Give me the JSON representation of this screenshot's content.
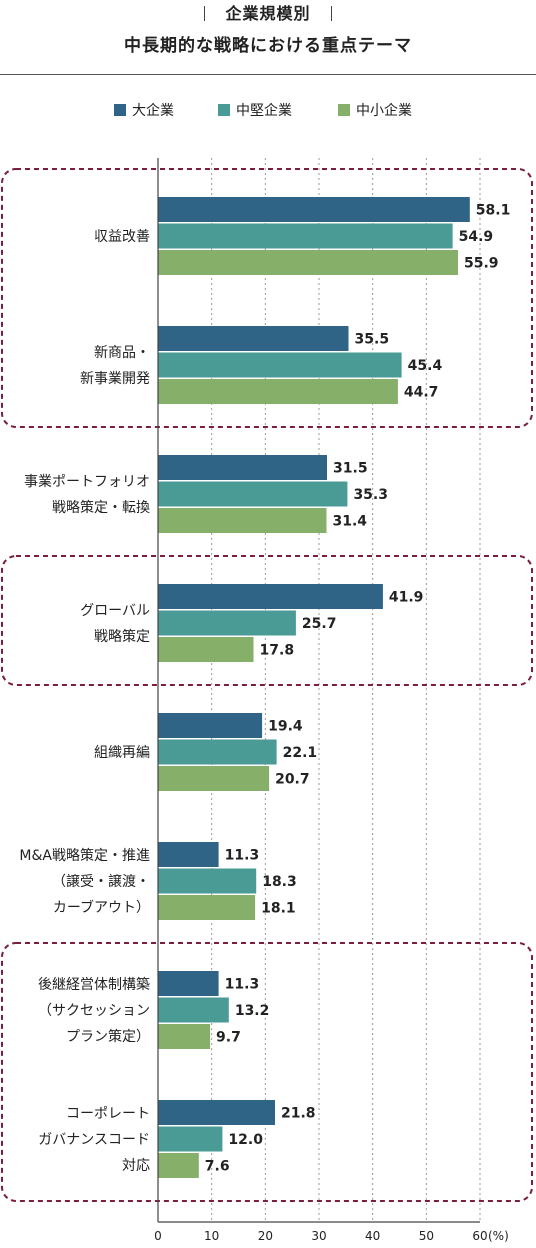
{
  "title_line1": "企業規模別",
  "title_line2": "中長期的な戦略における重点テーマ",
  "colors": {
    "large": "#2f6487",
    "medium": "#4a9a96",
    "small": "#86b06a",
    "highlight": "#7a1e3c"
  },
  "chart_data": {
    "type": "bar",
    "orientation": "horizontal",
    "x_unit": "(%)",
    "xlim": [
      0,
      60
    ],
    "x_ticks": [
      0,
      10,
      20,
      30,
      40,
      50,
      60
    ],
    "x_tick_labels": [
      "0",
      "10",
      "20",
      "30",
      "40",
      "50",
      "60"
    ],
    "grid": "vertical dotted",
    "legend_position": "top",
    "categories": [
      [
        "収益改善"
      ],
      [
        "新商品・",
        "新事業開発"
      ],
      [
        "事業ポートフォリオ",
        "戦略策定・転換"
      ],
      [
        "グローバル",
        "戦略策定"
      ],
      [
        "組織再編"
      ],
      [
        "M&A戦略策定・推進",
        "（譲受・譲渡・",
        "カーブアウト）"
      ],
      [
        "後継経営体制構築",
        "（サクセッション",
        "プラン策定）"
      ],
      [
        "コーポレート",
        "ガバナンスコード",
        "対応"
      ]
    ],
    "series": [
      {
        "name": "大企業",
        "values": [
          58.1,
          35.5,
          31.5,
          41.9,
          19.4,
          11.3,
          11.3,
          21.8
        ],
        "labels": [
          "58.1",
          "35.5",
          "31.5",
          "41.9",
          "19.4",
          "11.3",
          "11.3",
          "21.8"
        ]
      },
      {
        "name": "中堅企業",
        "values": [
          54.9,
          45.4,
          35.3,
          25.7,
          22.1,
          18.3,
          13.2,
          12.0
        ],
        "labels": [
          "54.9",
          "45.4",
          "35.3",
          "25.7",
          "22.1",
          "18.3",
          "13.2",
          "12.0"
        ]
      },
      {
        "name": "中小企業",
        "values": [
          55.9,
          44.7,
          31.4,
          17.8,
          20.7,
          18.1,
          9.7,
          7.6
        ],
        "labels": [
          "55.9",
          "44.7",
          "31.4",
          "17.8",
          "20.7",
          "18.1",
          "9.7",
          "7.6"
        ]
      }
    ],
    "highlight_groups": [
      [
        0,
        1
      ],
      [
        3
      ],
      [
        6,
        7
      ]
    ]
  }
}
